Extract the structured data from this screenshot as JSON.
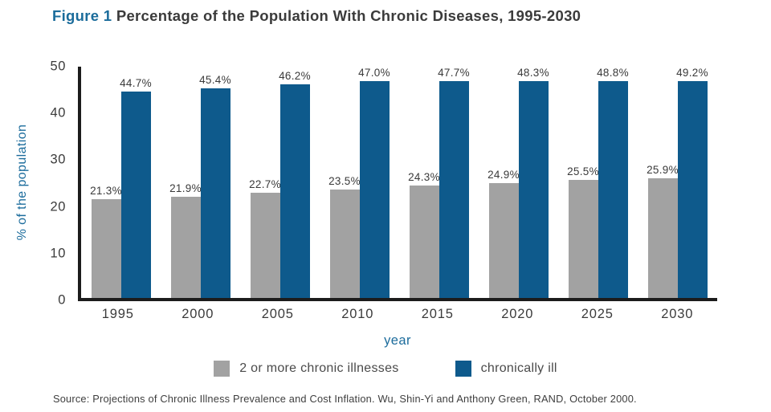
{
  "figure": {
    "label": "Figure 1",
    "title": "Percentage of the Population With Chronic Diseases, 1995-2030"
  },
  "chart_data": {
    "type": "bar",
    "categories": [
      "1995",
      "2000",
      "2005",
      "2010",
      "2015",
      "2020",
      "2025",
      "2030"
    ],
    "series": [
      {
        "name": "2 or more chronic illnesses",
        "color": "#A2A2A2",
        "values": [
          21.3,
          21.9,
          22.7,
          23.5,
          24.3,
          24.9,
          25.5,
          25.9
        ]
      },
      {
        "name": "chronically ill",
        "color": "#0E5A8C",
        "values": [
          44.7,
          45.4,
          46.2,
          47.0,
          47.7,
          48.3,
          48.8,
          49.2
        ]
      }
    ],
    "value_label_suffix": "%",
    "xlabel": "year",
    "ylabel": "% of the population",
    "ylim": [
      0,
      50
    ],
    "yticks": [
      0,
      10,
      20,
      30,
      40,
      50
    ],
    "grid": false,
    "legend_position": "bottom"
  },
  "source": "Source: Projections of Chronic Illness Prevalence and Cost Inflation. Wu, Shin-Yi and Anthony Green, RAND, October 2000.",
  "colors": {
    "title_blue": "#1B6C9B",
    "axis_label_blue": "#1C6C9C",
    "bar_gray": "#A2A2A2",
    "bar_blue": "#0E5A8C",
    "text_dark": "#3B3B3B",
    "axis_black": "#1C1C1C",
    "background": "#FFFFFF"
  }
}
